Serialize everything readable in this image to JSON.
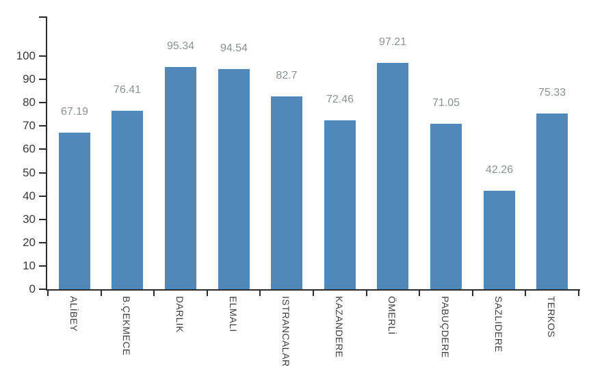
{
  "chart_data": {
    "type": "bar",
    "categories": [
      "ALİBEY",
      "B.ÇEKMECE",
      "DARLIK",
      "ELMALI",
      "ISTRANCALAR",
      "KAZANDERE",
      "ÖMERLİ",
      "PABUÇDERE",
      "SAZLIDERE",
      "TERKOS"
    ],
    "values": [
      67.19,
      76.41,
      95.34,
      94.54,
      82.7,
      72.46,
      97.21,
      71.05,
      42.26,
      75.33
    ],
    "value_labels": [
      "67.19",
      "76.41",
      "95.34",
      "94.54",
      "82.7",
      "72.46",
      "97.21",
      "71.05",
      "42.26",
      "75.33"
    ],
    "title": "",
    "xlabel": "",
    "ylabel": "",
    "ylim": [
      0,
      100
    ],
    "y_ticks": [
      0,
      10,
      20,
      30,
      40,
      50,
      60,
      70,
      80,
      90,
      100
    ],
    "grid": false,
    "legend": false,
    "data_labels_position": "above-bar",
    "category_label_rotation": "vertical-top-to-bottom",
    "colors": {
      "bar": "#5089b9",
      "value_label": "#8a9095",
      "axis_text": "#3a3a3a",
      "axis_line": "#2a2a2a",
      "background": "#ffffff"
    }
  }
}
